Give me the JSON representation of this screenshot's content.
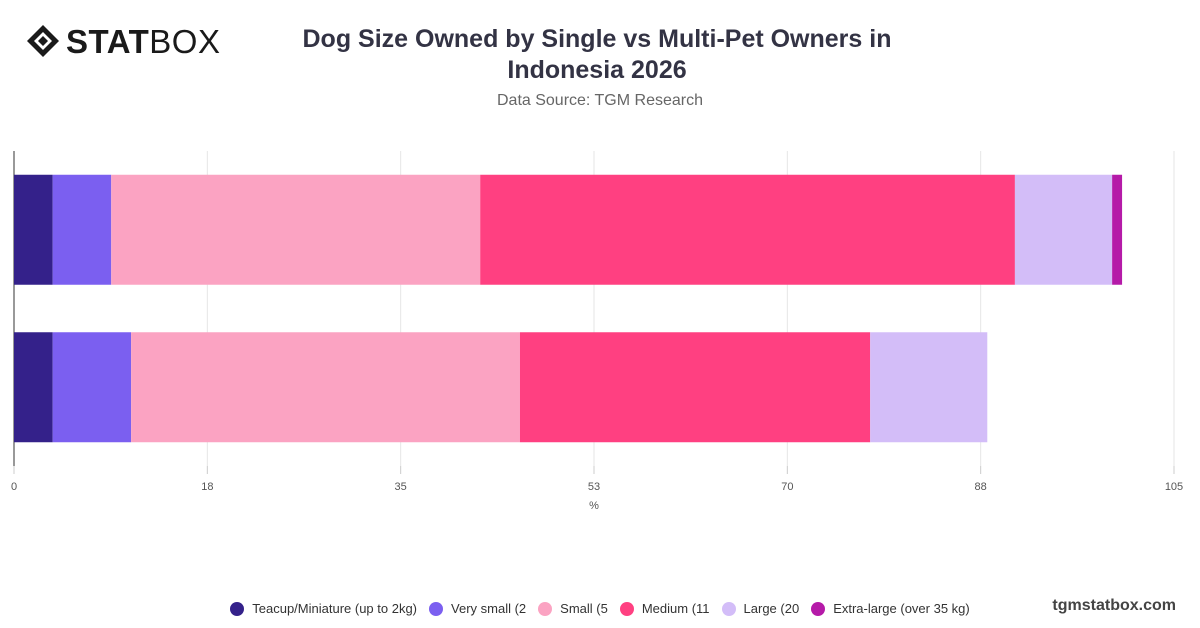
{
  "brand": {
    "logo_bold": "STAT",
    "logo_light": "BOX",
    "footer": "tgmstatbox.com"
  },
  "chart_data": {
    "type": "bar",
    "orientation": "horizontal",
    "stacked": true,
    "title": "Dog Size Owned by Single vs Multi-Pet Owners in Indonesia 2026",
    "subtitle": "Data Source: TGM Research",
    "xlabel": "%",
    "ylabel": "",
    "xlim": [
      0,
      105
    ],
    "x_ticks": [
      "0",
      "18",
      "35",
      "53",
      "70",
      "88",
      "105"
    ],
    "grid": true,
    "legend_position": "bottom",
    "categories": [
      "",
      ""
    ],
    "series": [
      {
        "name": "Teacup/Miniature (up to 2kg)",
        "color": "#34218a",
        "values": [
          3.5,
          3.5
        ]
      },
      {
        "name": "Very small (2",
        "color": "#7b5ff0",
        "values": [
          5.3,
          7.1
        ]
      },
      {
        "name": "Small (5",
        "color": "#fba3c2",
        "values": [
          33.4,
          35.2
        ]
      },
      {
        "name": "Medium (11",
        "color": "#ff4081",
        "values": [
          48.4,
          31.7
        ]
      },
      {
        "name": "Large (20",
        "color": "#d3bdf8",
        "values": [
          8.8,
          10.6
        ]
      },
      {
        "name": "Extra-large (over 35 kg)",
        "color": "#b51aa8",
        "values": [
          0.9,
          0
        ]
      }
    ]
  }
}
